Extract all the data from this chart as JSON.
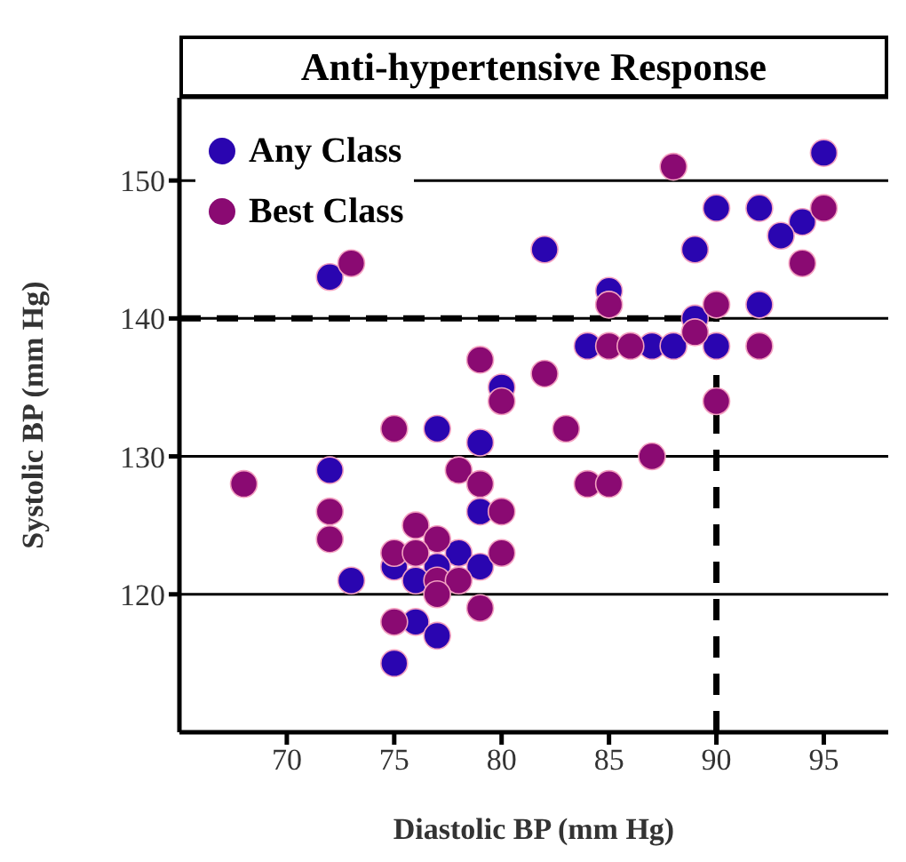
{
  "chart_data": {
    "type": "scatter",
    "title": "Anti-hypertensive Response",
    "xlabel": "Diastolic BP (mm Hg)",
    "ylabel": "Systolic BP (mm Hg)",
    "xlim": [
      65,
      98
    ],
    "xticks": [
      70,
      75,
      80,
      85,
      90,
      95
    ],
    "ylim": [
      110,
      156
    ],
    "yticks": [
      120,
      130,
      140,
      150
    ],
    "grid": "y",
    "legend": "top left",
    "marker": "circle",
    "series": [
      {
        "name": "Any Class",
        "color": "#2a05b0",
        "x": [
          72,
          82,
          80,
          77,
          79,
          95,
          90,
          92,
          94,
          93,
          89,
          85,
          92,
          89,
          84,
          87,
          88,
          90,
          72,
          73,
          79,
          75,
          78,
          77,
          79,
          76,
          76,
          77,
          75
        ],
        "values": [
          143,
          145,
          135,
          132,
          131,
          152,
          148,
          148,
          147,
          146,
          145,
          142,
          141,
          140,
          138,
          138,
          138,
          138,
          129,
          121,
          126,
          122,
          123,
          122,
          122,
          121,
          118,
          117,
          115
        ]
      },
      {
        "name": "Best Class",
        "color": "#8a0a72",
        "x": [
          73,
          79,
          80,
          75,
          82,
          88,
          95,
          94,
          85,
          90,
          89,
          85,
          86,
          92,
          90,
          83,
          87,
          84,
          85,
          68,
          72,
          72,
          78,
          79,
          80,
          76,
          77,
          75,
          76,
          80,
          77,
          78,
          77,
          79,
          75
        ],
        "values": [
          144,
          137,
          134,
          132,
          136,
          151,
          148,
          144,
          141,
          141,
          139,
          138,
          138,
          138,
          134,
          132,
          130,
          128,
          128,
          128,
          126,
          124,
          129,
          128,
          126,
          125,
          124,
          123,
          123,
          123,
          121,
          121,
          120,
          119,
          118
        ]
      }
    ],
    "ref_lines": [
      {
        "axis": "y",
        "value": 140,
        "color": "#000000",
        "line_style": "dashed"
      },
      {
        "axis": "x",
        "value": 90,
        "color": "#000000",
        "line_style": "dashed"
      }
    ]
  }
}
